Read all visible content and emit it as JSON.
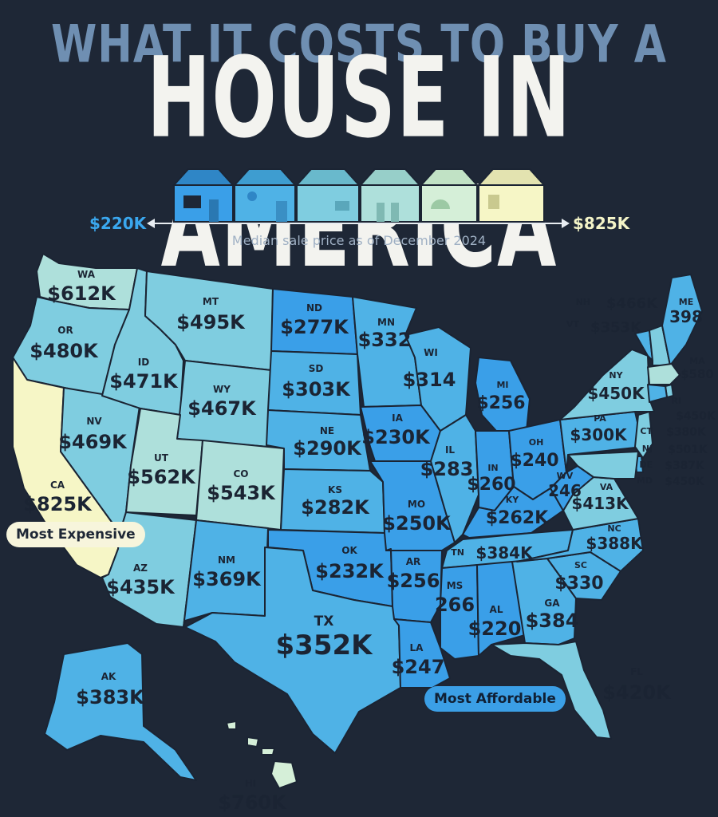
{
  "header": {
    "subtitle": "WHAT IT COSTS TO BUY A",
    "title": "HOUSE IN AMERICA",
    "scale_low": "$220K",
    "scale_high": "$825K",
    "note": "Median sale price as of December 2024"
  },
  "callouts": {
    "most_expensive": "Most Expensive",
    "most_affordable": "Most Affordable"
  },
  "colors": {
    "background": "#1e2736",
    "title": "#f3f3ef",
    "subtitle": "#6f8fb2",
    "scale_swatches": [
      "#3a9fe8",
      "#4fb2e6",
      "#7fcde0",
      "#aee0db",
      "#d5efd8",
      "#f6f6c6"
    ],
    "border": "#1b2433"
  },
  "states": [
    {
      "code": "WA",
      "value": "$612K",
      "price": 612
    },
    {
      "code": "OR",
      "value": "$480K",
      "price": 480
    },
    {
      "code": "CA",
      "value": "$825K",
      "price": 825
    },
    {
      "code": "NV",
      "value": "$469K",
      "price": 469
    },
    {
      "code": "ID",
      "value": "$471K",
      "price": 471
    },
    {
      "code": "MT",
      "value": "$495K",
      "price": 495
    },
    {
      "code": "WY",
      "value": "$467K",
      "price": 467
    },
    {
      "code": "UT",
      "value": "$562K",
      "price": 562
    },
    {
      "code": "CO",
      "value": "$543K",
      "price": 543
    },
    {
      "code": "AZ",
      "value": "$435K",
      "price": 435
    },
    {
      "code": "NM",
      "value": "$369K",
      "price": 369
    },
    {
      "code": "ND",
      "value": "$277K",
      "price": 277
    },
    {
      "code": "SD",
      "value": "$303K",
      "price": 303
    },
    {
      "code": "NE",
      "value": "$290K",
      "price": 290
    },
    {
      "code": "KS",
      "value": "$282K",
      "price": 282
    },
    {
      "code": "OK",
      "value": "$232K",
      "price": 232
    },
    {
      "code": "TX",
      "value": "$352K",
      "price": 352
    },
    {
      "code": "MN",
      "value": "$332",
      "price": 332
    },
    {
      "code": "IA",
      "value": "$230K",
      "price": 230
    },
    {
      "code": "MO",
      "value": "$250K",
      "price": 250
    },
    {
      "code": "AR",
      "value": "$256",
      "price": 256
    },
    {
      "code": "LA",
      "value": "$247",
      "price": 247
    },
    {
      "code": "WI",
      "value": "$314",
      "price": 314
    },
    {
      "code": "IL",
      "value": "$283",
      "price": 283
    },
    {
      "code": "MI",
      "value": "$256",
      "price": 256
    },
    {
      "code": "IN",
      "value": "$260",
      "price": 260
    },
    {
      "code": "OH",
      "value": "$240",
      "price": 240
    },
    {
      "code": "KY",
      "value": "$262K",
      "price": 262
    },
    {
      "code": "TN",
      "value": "$384K",
      "price": 384
    },
    {
      "code": "MS",
      "value": "266",
      "price": 266
    },
    {
      "code": "AL",
      "value": "$220",
      "price": 220
    },
    {
      "code": "GA",
      "value": "$384",
      "price": 384
    },
    {
      "code": "FL",
      "value": "$420K",
      "price": 420
    },
    {
      "code": "SC",
      "value": "$330",
      "price": 330
    },
    {
      "code": "NC",
      "value": "$388K",
      "price": 388
    },
    {
      "code": "VA",
      "value": "$413K",
      "price": 413
    },
    {
      "code": "WV",
      "value": "246",
      "price": 246
    },
    {
      "code": "PA",
      "value": "$300K",
      "price": 300
    },
    {
      "code": "NY",
      "value": "$450K",
      "price": 450
    },
    {
      "code": "VT",
      "value": "$353K",
      "price": 353
    },
    {
      "code": "NH",
      "value": "$466K",
      "price": 466
    },
    {
      "code": "ME",
      "value": "398",
      "price": 398
    },
    {
      "code": "MA",
      "value": "$580",
      "price": 580
    },
    {
      "code": "RI",
      "value": "$450K",
      "price": 450
    },
    {
      "code": "CT",
      "value": "$380K",
      "price": 380
    },
    {
      "code": "NJ",
      "value": "$501K",
      "price": 501
    },
    {
      "code": "DE",
      "value": "$387K",
      "price": 387
    },
    {
      "code": "MD",
      "value": "$450K",
      "price": 450
    },
    {
      "code": "AK",
      "value": "$383K",
      "price": 383
    },
    {
      "code": "HI",
      "value": "$760K",
      "price": 760
    }
  ]
}
